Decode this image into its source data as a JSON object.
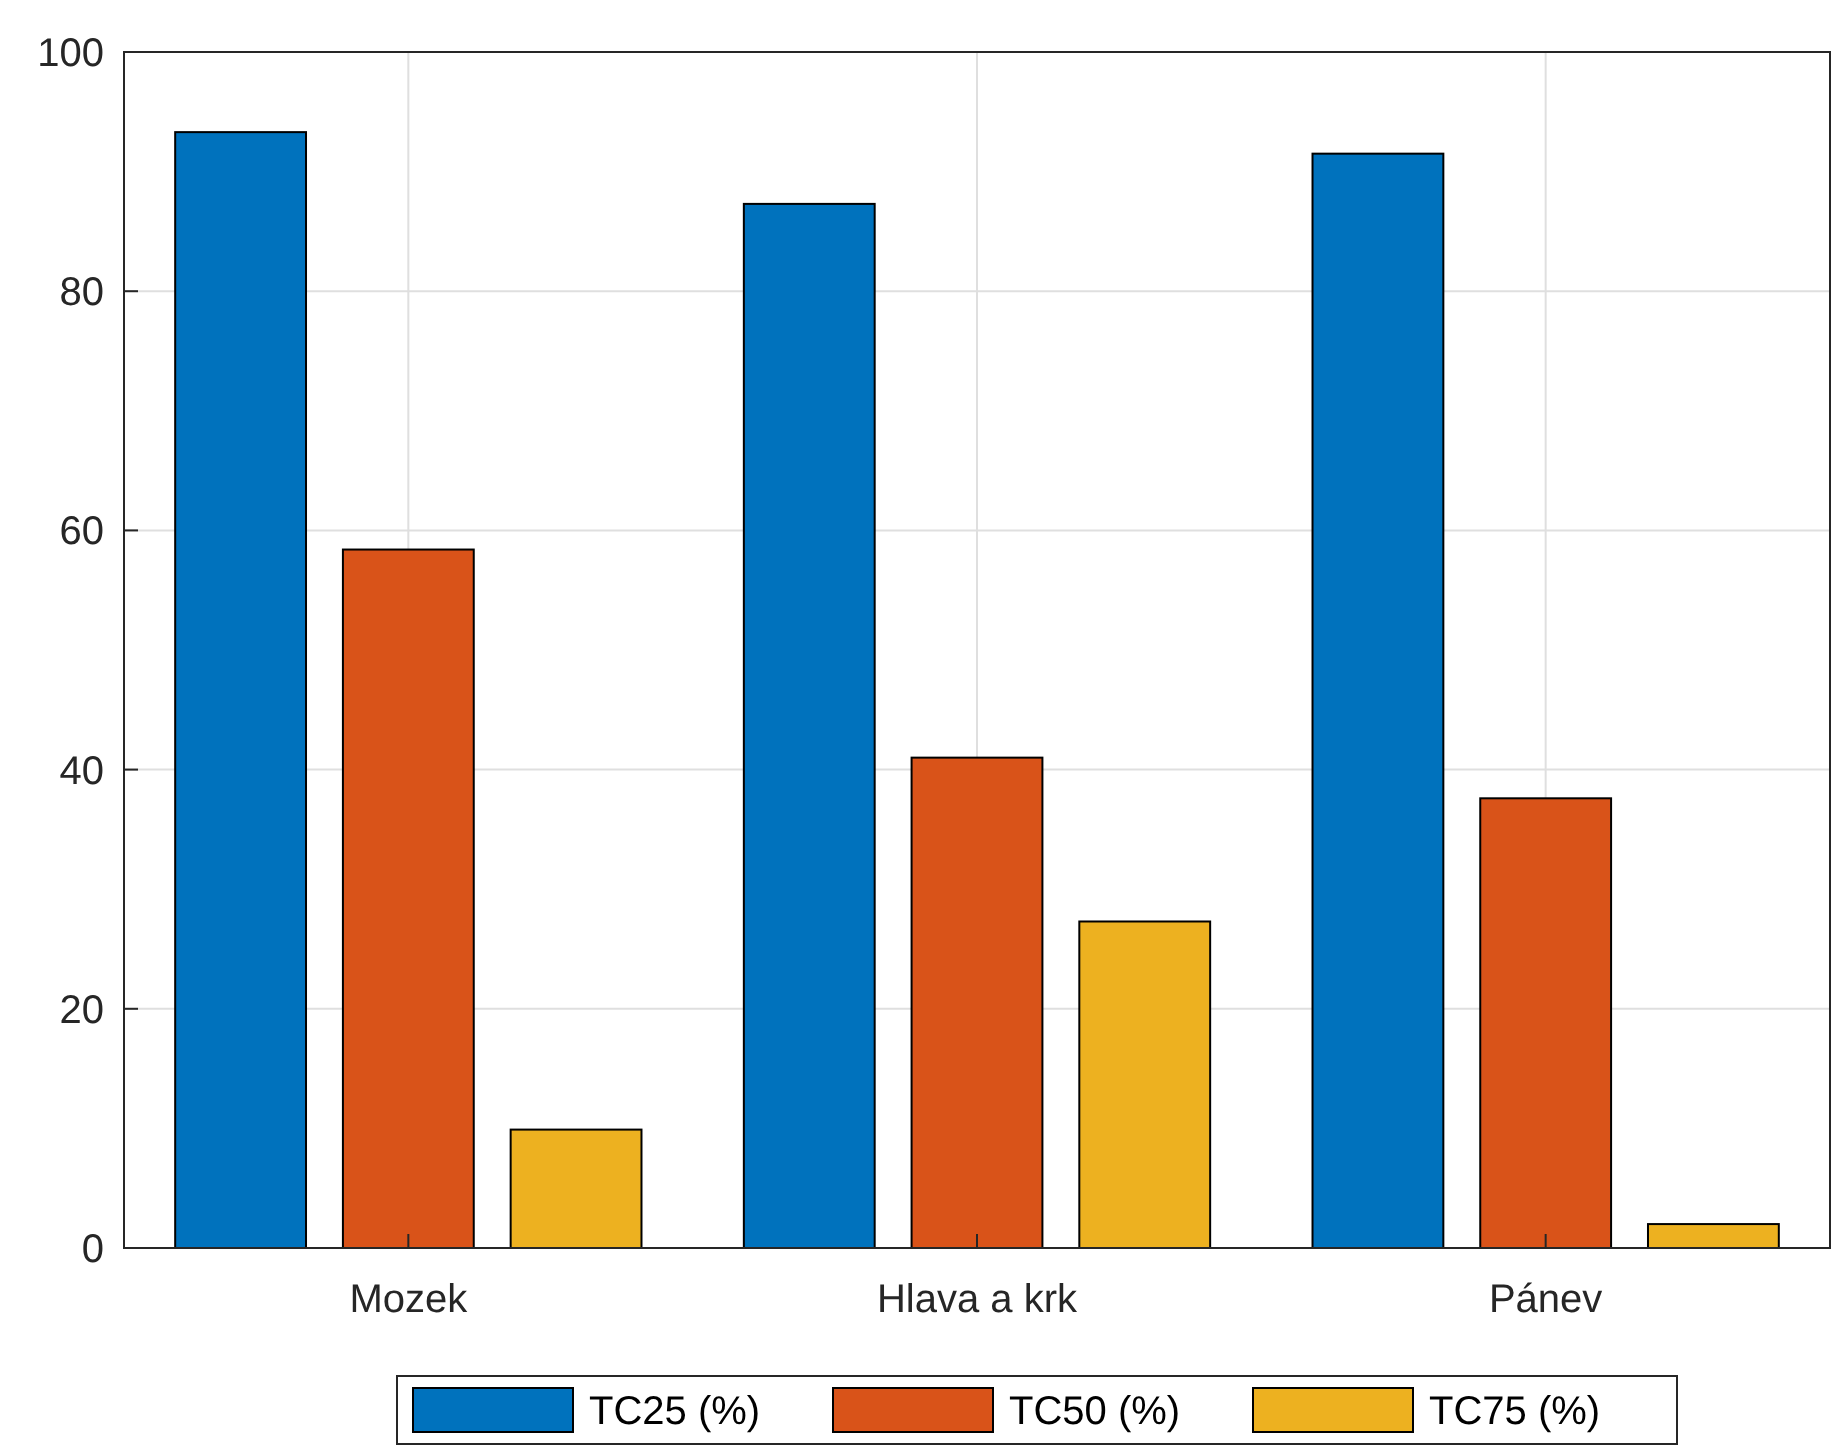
{
  "chart_data": {
    "type": "bar",
    "categories": [
      "Mozek",
      "Hlava a krk",
      "Pánev"
    ],
    "series": [
      {
        "name": "TC25 (%)",
        "color": "#0072bd",
        "values": [
          93.3,
          87.3,
          91.5
        ]
      },
      {
        "name": "TC50 (%)",
        "color": "#d95319",
        "values": [
          58.4,
          41.0,
          37.6
        ]
      },
      {
        "name": "TC75 (%)",
        "color": "#edb120",
        "values": [
          9.9,
          27.3,
          2.0
        ]
      }
    ],
    "ylim": [
      0,
      100
    ],
    "yticks": [
      0,
      20,
      40,
      60,
      80,
      100
    ],
    "grid": true,
    "legend": "bottom"
  }
}
